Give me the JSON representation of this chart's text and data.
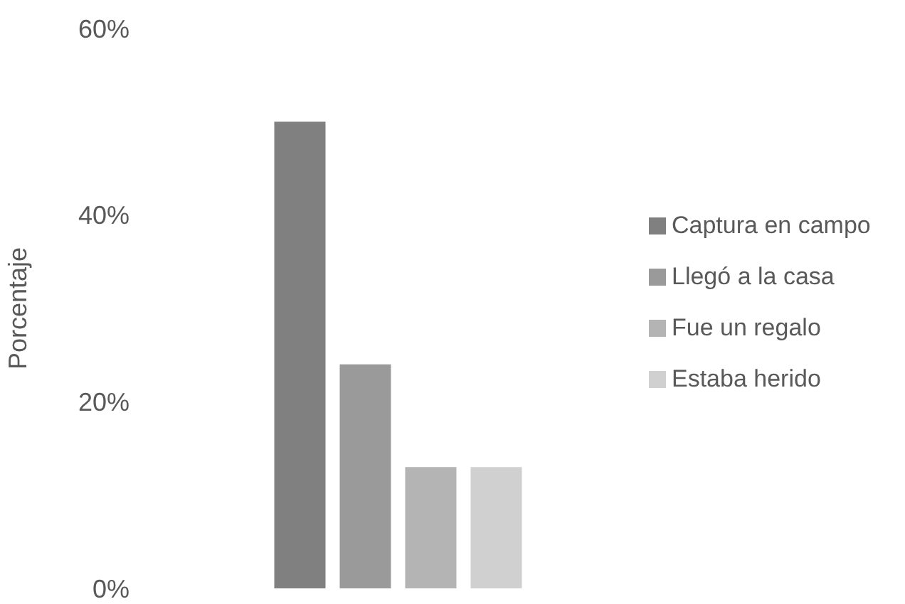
{
  "chart_data": {
    "type": "bar",
    "ylabel": "Porcentaje",
    "categories": [
      null
    ],
    "series": [
      {
        "name": "Captura en campo",
        "color": "#808080",
        "values": [
          50
        ]
      },
      {
        "name": "Llegó a la casa",
        "color": "#9a9a9a",
        "values": [
          24
        ]
      },
      {
        "name": "Fue un regalo",
        "color": "#b4b4b4",
        "values": [
          13
        ]
      },
      {
        "name": "Estaba herido",
        "color": "#d0d0d0",
        "values": [
          13
        ]
      }
    ],
    "ylim": [
      0,
      60
    ],
    "yticks": [
      {
        "value": 0,
        "label": "0%"
      },
      {
        "value": 20,
        "label": "20%"
      },
      {
        "value": 40,
        "label": "40%"
      },
      {
        "value": 60,
        "label": "60%"
      }
    ],
    "grid": false,
    "legend": "right"
  }
}
